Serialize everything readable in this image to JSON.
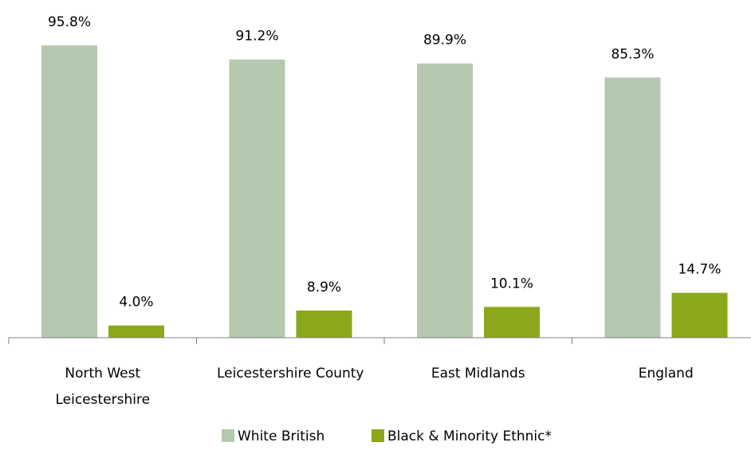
{
  "chart_data": {
    "type": "bar",
    "categories": [
      [
        "North West",
        "Leicestershire"
      ],
      [
        "Leicestershire County"
      ],
      [
        "East Midlands"
      ],
      [
        "England"
      ]
    ],
    "series": [
      {
        "name": "White British",
        "color": "#b5c8b0",
        "values": [
          95.8,
          91.2,
          89.9,
          85.3
        ],
        "labels": [
          "95.8%",
          "91.2%",
          "89.9%",
          "85.3%"
        ]
      },
      {
        "name": "Black & Minority Ethnic*",
        "color": "#8aa81a",
        "values": [
          4.0,
          8.9,
          10.1,
          14.7
        ],
        "labels": [
          "4.0%",
          "8.9%",
          "10.1%",
          "14.7%"
        ]
      }
    ],
    "ylim": [
      0,
      100
    ],
    "grid": false,
    "legend": "bottom-center"
  }
}
